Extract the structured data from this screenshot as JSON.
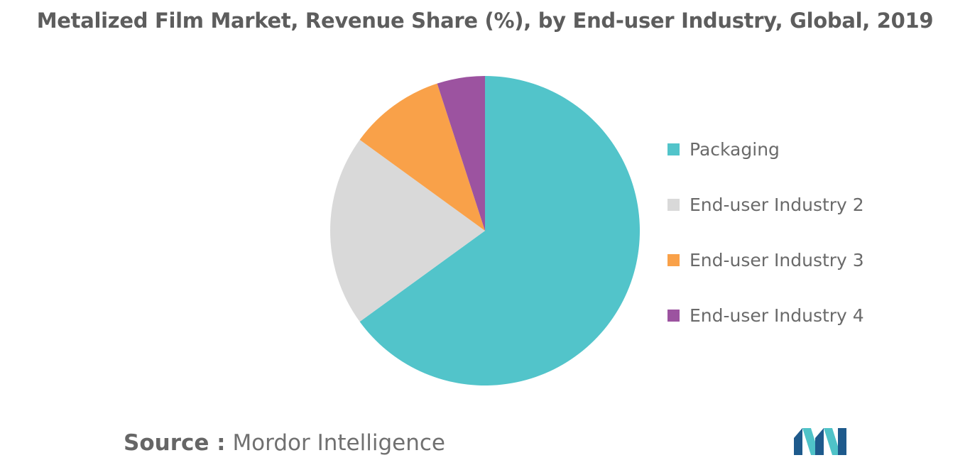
{
  "chart_data": {
    "type": "pie",
    "title": "Metalized Film Market, Revenue Share (%), by End-user Industry, Global, 2019",
    "slices": [
      {
        "label": "Packaging",
        "value": 65,
        "color": "#52c4ca"
      },
      {
        "label": "End-user Industry 2",
        "value": 20,
        "color": "#d9d9d9"
      },
      {
        "label": "End-user Industry 3",
        "value": 10,
        "color": "#f9a149"
      },
      {
        "label": "End-user Industry 4",
        "value": 5,
        "color": "#9c53a0"
      }
    ],
    "legend_position": "right"
  },
  "source": {
    "key": "Source :",
    "value": "Mordor Intelligence"
  },
  "logo": {
    "icon": "mordor-intelligence-logo",
    "colors": [
      "#1e5a8c",
      "#4fc3c8"
    ]
  }
}
